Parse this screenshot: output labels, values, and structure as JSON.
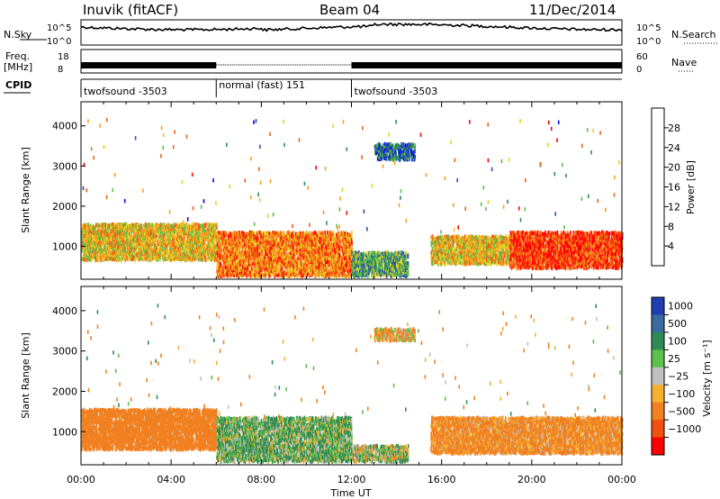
{
  "header": {
    "station": "Inuvik (fitACF)",
    "beam": "Beam 04",
    "date": "11/Dec/2014"
  },
  "panels": {
    "nsky_label": "N.Sky",
    "nsky_ticks": [
      "10^5",
      "10^0"
    ],
    "nsearch_label": "N.Search",
    "nsearch_ticks": [
      "10^5",
      "10^0"
    ],
    "freq_label_line1": "Freq.",
    "freq_label_line2": "[MHz]",
    "freq_ticks": [
      "18",
      "8"
    ],
    "nave_label": "Nave",
    "nave_ticks": [
      "60",
      "0"
    ],
    "cpid_label": "CPID",
    "cpid_segments": [
      {
        "label": "twofsound -3503",
        "start_hour": 0,
        "end_hour": 6
      },
      {
        "label": "normal (fast) 151",
        "start_hour": 6,
        "end_hour": 12
      },
      {
        "label": "twofsound -3503",
        "start_hour": 12,
        "end_hour": 24
      }
    ]
  },
  "axes": {
    "range_label": "Slant Range [km]",
    "range_ticks": [
      "1000",
      "2000",
      "3000",
      "4000"
    ],
    "time_label": "Time UT",
    "time_ticks": [
      "00:00",
      "04:00",
      "08:00",
      "12:00",
      "16:00",
      "20:00",
      "00:00"
    ]
  },
  "power_scale": {
    "label": "Power [dB]",
    "ticks": [
      "4",
      "8",
      "12",
      "16",
      "20",
      "24",
      "28"
    ],
    "colors": [
      "#0000ff",
      "#2c4fb0",
      "#2e8b57",
      "#5cc04a",
      "#e8d020",
      "#f5a020",
      "#f06010",
      "#ff0000"
    ]
  },
  "velocity_scale": {
    "label": "Velocity [m s⁻¹]",
    "ticks": [
      "1000",
      "500",
      "100",
      "25",
      "−25",
      "−100",
      "−500",
      "−1000"
    ],
    "colors": [
      "#1f3fb0",
      "#3a6aa0",
      "#2e8b57",
      "#5cc04a",
      "#c0c0c0",
      "#f5b030",
      "#f08020",
      "#f05010",
      "#ff0000"
    ]
  },
  "chart_data": {
    "type": "heatmap",
    "x_range_hours": [
      0,
      24
    ],
    "y_range_km": [
      180,
      4600
    ],
    "power_bands_km": [
      {
        "start_hour": 0.0,
        "end_hour": 6.0,
        "range_km": [
          700,
          1600
        ],
        "power_db": 20
      },
      {
        "start_hour": 6.0,
        "end_hour": 12.0,
        "range_km": [
          300,
          1400
        ],
        "power_db": 24
      },
      {
        "start_hour": 12.0,
        "end_hour": 14.5,
        "range_km": [
          300,
          900
        ],
        "power_db": 12
      },
      {
        "start_hour": 13.0,
        "end_hour": 14.8,
        "range_km": [
          3200,
          3600
        ],
        "power_db": 8
      },
      {
        "start_hour": 15.5,
        "end_hour": 19.0,
        "range_km": [
          600,
          1300
        ],
        "power_db": 20
      },
      {
        "start_hour": 19.0,
        "end_hour": 24.0,
        "range_km": [
          500,
          1400
        ],
        "power_db": 28
      }
    ],
    "velocity_bands_km": [
      {
        "start_hour": 0.0,
        "end_hour": 6.0,
        "range_km": [
          600,
          1600
        ],
        "velocity_ms": -300
      },
      {
        "start_hour": 6.0,
        "end_hour": 12.0,
        "range_km": [
          300,
          1400
        ],
        "velocity_ms": 100
      },
      {
        "start_hour": 12.0,
        "end_hour": 14.5,
        "range_km": [
          300,
          700
        ],
        "velocity_ms": 25
      },
      {
        "start_hour": 13.0,
        "end_hour": 14.8,
        "range_km": [
          3300,
          3600
        ],
        "velocity_ms": -100
      },
      {
        "start_hour": 15.5,
        "end_hour": 24.0,
        "range_km": [
          500,
          1400
        ],
        "velocity_ms": -200
      }
    ]
  }
}
